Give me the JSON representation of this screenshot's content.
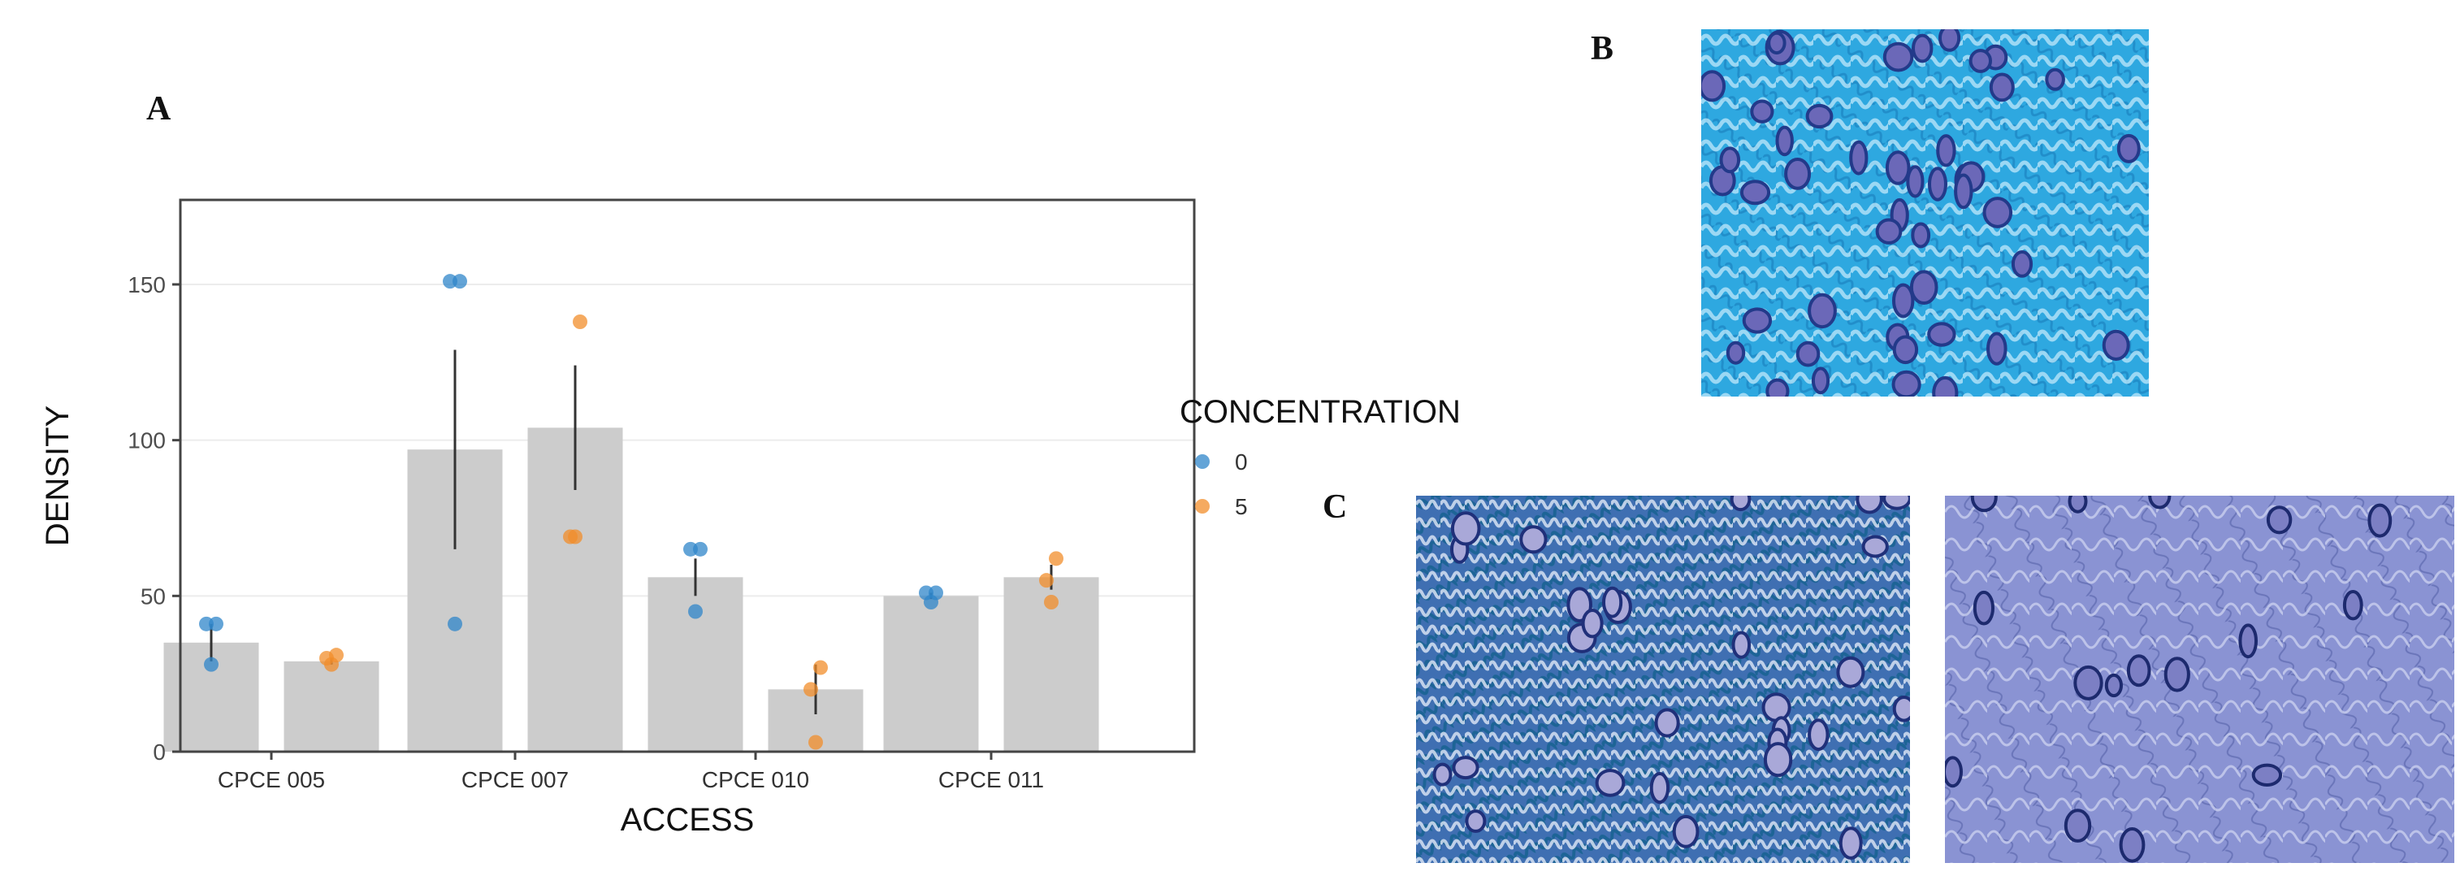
{
  "panels": {
    "a": "A",
    "b": "B",
    "c": "C"
  },
  "chart_data": {
    "type": "bar",
    "xlabel": "ACCESS",
    "ylabel": "DENSITY",
    "ylim": [
      0,
      180
    ],
    "yticks": [
      "0",
      "50",
      "100",
      "150"
    ],
    "categories": [
      "CPCE 005",
      "CPCE 007",
      "CPCE 010",
      "CPCE 011"
    ],
    "legend": {
      "title": "CONCENTRATION",
      "placement": "right"
    },
    "series": [
      {
        "name": "0",
        "color": "#2f86c9",
        "values": [
          35,
          97,
          56,
          50
        ],
        "err": [
          6,
          32,
          6,
          1
        ],
        "points": [
          [
            28,
            41,
            41
          ],
          [
            41,
            151,
            151
          ],
          [
            45,
            65,
            65
          ],
          [
            48,
            51,
            51
          ]
        ]
      },
      {
        "name": "5",
        "color": "#f28e2b",
        "values": [
          29,
          104,
          20,
          56
        ],
        "err": [
          1,
          20,
          8,
          4
        ],
        "points": [
          [
            28,
            30,
            31
          ],
          [
            69,
            69,
            138
          ],
          [
            3,
            20,
            27
          ],
          [
            48,
            55,
            62
          ]
        ]
      }
    ],
    "grid": true
  },
  "colors": {
    "bar": "#cccccc",
    "panel_border": "#444444",
    "grid": "#ececec",
    "stain_b": "#2ea8e0",
    "stain_c": "#5a78c0"
  }
}
